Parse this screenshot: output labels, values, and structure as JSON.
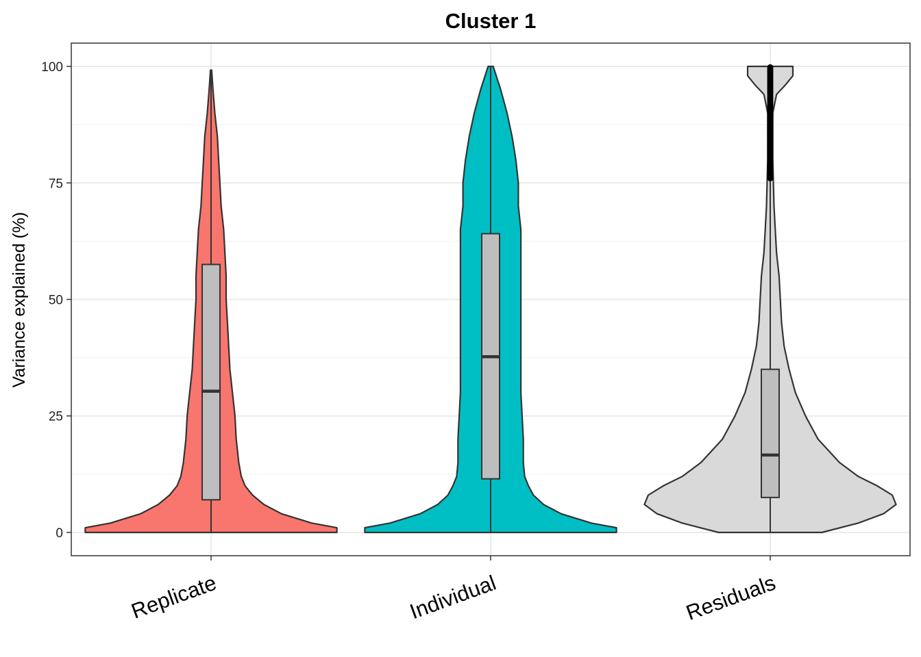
{
  "chart_data": {
    "type": "violin",
    "title": "Cluster 1",
    "xlabel": "",
    "ylabel": "Variance explained (%)",
    "ylim": [
      -5,
      105
    ],
    "yticks": [
      0,
      25,
      50,
      75,
      100
    ],
    "categories": [
      "Replicate",
      "Individual",
      "Residuals"
    ],
    "grid": true,
    "colors": {
      "Replicate": "#f8766d",
      "Individual": "#00bfc4",
      "Residuals": "#d9d9d9",
      "box_fill": "#bebebe",
      "outline": "#333333",
      "outliers": "#000000"
    },
    "series": [
      {
        "category": "Replicate",
        "box": {
          "min": 0,
          "q1": 7,
          "median": 30.3,
          "q3": 57.5,
          "max": 99.2
        },
        "density": [
          [
            0,
            1.0
          ],
          [
            1,
            1.0
          ],
          [
            2,
            0.8
          ],
          [
            4,
            0.56
          ],
          [
            6,
            0.42
          ],
          [
            8,
            0.33
          ],
          [
            10,
            0.27
          ],
          [
            12,
            0.24
          ],
          [
            15,
            0.22
          ],
          [
            20,
            0.2
          ],
          [
            25,
            0.19
          ],
          [
            30,
            0.17
          ],
          [
            35,
            0.15
          ],
          [
            40,
            0.14
          ],
          [
            45,
            0.13
          ],
          [
            50,
            0.12
          ],
          [
            55,
            0.12
          ],
          [
            60,
            0.11
          ],
          [
            65,
            0.1
          ],
          [
            70,
            0.08
          ],
          [
            75,
            0.07
          ],
          [
            80,
            0.06
          ],
          [
            85,
            0.05
          ],
          [
            90,
            0.03
          ],
          [
            95,
            0.015
          ],
          [
            99.2,
            0.005
          ]
        ]
      },
      {
        "category": "Individual",
        "box": {
          "min": 0,
          "q1": 11.5,
          "median": 37.7,
          "q3": 64.1,
          "max": 100
        },
        "density": [
          [
            0,
            1.0
          ],
          [
            1,
            1.0
          ],
          [
            2,
            0.8
          ],
          [
            4,
            0.56
          ],
          [
            6,
            0.42
          ],
          [
            8,
            0.34
          ],
          [
            10,
            0.3
          ],
          [
            12,
            0.27
          ],
          [
            15,
            0.26
          ],
          [
            20,
            0.26
          ],
          [
            25,
            0.25
          ],
          [
            30,
            0.24
          ],
          [
            35,
            0.24
          ],
          [
            40,
            0.24
          ],
          [
            45,
            0.24
          ],
          [
            50,
            0.24
          ],
          [
            55,
            0.24
          ],
          [
            60,
            0.24
          ],
          [
            65,
            0.24
          ],
          [
            70,
            0.22
          ],
          [
            75,
            0.22
          ],
          [
            80,
            0.2
          ],
          [
            85,
            0.17
          ],
          [
            90,
            0.13
          ],
          [
            95,
            0.08
          ],
          [
            100,
            0.02
          ]
        ]
      },
      {
        "category": "Residuals",
        "box": {
          "min": 0,
          "q1": 7.5,
          "median": 16.6,
          "q3": 35,
          "max": 76
        },
        "density": [
          [
            0,
            0.41
          ],
          [
            2,
            0.7
          ],
          [
            4,
            0.9
          ],
          [
            6,
            1.0
          ],
          [
            8,
            0.97
          ],
          [
            10,
            0.85
          ],
          [
            12,
            0.7
          ],
          [
            15,
            0.55
          ],
          [
            20,
            0.38
          ],
          [
            25,
            0.28
          ],
          [
            30,
            0.2
          ],
          [
            35,
            0.15
          ],
          [
            40,
            0.11
          ],
          [
            45,
            0.09
          ],
          [
            50,
            0.08
          ],
          [
            55,
            0.07
          ],
          [
            60,
            0.05
          ],
          [
            65,
            0.04
          ],
          [
            70,
            0.03
          ],
          [
            75,
            0.025
          ],
          [
            80,
            0.02
          ],
          [
            85,
            0.02
          ],
          [
            90,
            0.02
          ],
          [
            94,
            0.05
          ],
          [
            96,
            0.12
          ],
          [
            98,
            0.18
          ],
          [
            100,
            0.18
          ]
        ],
        "outliers_range": [
          76,
          100
        ]
      }
    ]
  }
}
